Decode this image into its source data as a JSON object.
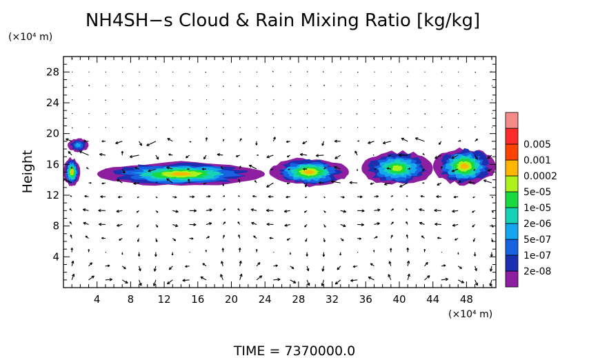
{
  "chart_data": {
    "type": "heatmap",
    "title": "NH4SH−s Cloud & Rain Mixing Ratio [kg/kg]",
    "xlabel": "",
    "ylabel": "Height",
    "x_unit": "(×10⁴ m)",
    "y_unit": "(×10⁴ m)",
    "xlim": [
      0,
      51.5
    ],
    "ylim": [
      0,
      30
    ],
    "x_ticks": [
      4,
      8,
      12,
      16,
      20,
      24,
      28,
      32,
      36,
      40,
      44,
      48
    ],
    "y_ticks": [
      4,
      8,
      12,
      16,
      20,
      24,
      28
    ],
    "colorbar": {
      "labels": [
        "2e-08",
        "1e-07",
        "5e-07",
        "2e-06",
        "1e-05",
        "5e-05",
        "0.0002",
        "0.001",
        "0.005"
      ],
      "colors": [
        "#8e1ea0",
        "#1c2fb0",
        "#1762e0",
        "#14a6ee",
        "#17d3b5",
        "#18d93d",
        "#aef21d",
        "#ffb600",
        "#ff4200",
        "#ff2a2a",
        "#f58a8a"
      ]
    },
    "cloud_regions": [
      {
        "x": [
          0,
          2
        ],
        "y": [
          13,
          17
        ],
        "peak": "0.0002"
      },
      {
        "x": [
          0.5,
          3
        ],
        "y": [
          17.5,
          19.5
        ],
        "peak": "5e-07"
      },
      {
        "x": [
          4,
          24
        ],
        "y": [
          13,
          16.5
        ],
        "peak": "0.0002"
      },
      {
        "x": [
          24.5,
          34
        ],
        "y": [
          13,
          17
        ],
        "peak": "0.0002"
      },
      {
        "x": [
          35.5,
          44
        ],
        "y": [
          13,
          18
        ],
        "peak": "5e-05"
      },
      {
        "x": [
          44,
          51.5
        ],
        "y": [
          13,
          18.5
        ],
        "peak": "0.0002"
      }
    ],
    "wind_vectors": true,
    "footer": "TIME  =  7370000.0"
  }
}
